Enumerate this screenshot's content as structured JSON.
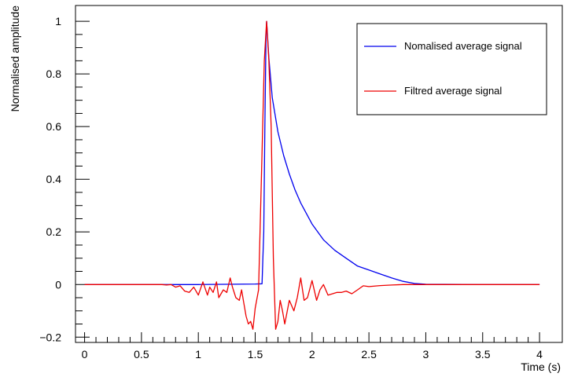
{
  "chart_data": {
    "type": "line",
    "title": "",
    "xlabel": "Time (s)",
    "ylabel": "Normalised amplitude",
    "xlim": [
      -0.08,
      4.2
    ],
    "ylim": [
      -0.22,
      1.06
    ],
    "x_ticks": [
      0,
      0.5,
      1,
      1.5,
      2,
      2.5,
      3,
      3.5,
      4
    ],
    "x_tick_labels": [
      "0",
      "0.5",
      "1",
      "1.5",
      "2",
      "2.5",
      "3",
      "3.5",
      "4"
    ],
    "y_ticks": [
      -0.2,
      0,
      0.2,
      0.4,
      0.6,
      0.8,
      1
    ],
    "y_tick_labels": [
      "−0.2",
      "0",
      "0.2",
      "0.4",
      "0.6",
      "0.8",
      "1"
    ],
    "grid": false,
    "legend_position": "top-right",
    "series": [
      {
        "name": "Nomalised average signal",
        "color": "#0000ee",
        "x": [
          0,
          0.5,
          1.0,
          1.5,
          1.56,
          1.575,
          1.585,
          1.595,
          1.6,
          1.605,
          1.62,
          1.65,
          1.7,
          1.75,
          1.8,
          1.85,
          1.9,
          1.95,
          2.0,
          2.1,
          2.2,
          2.3,
          2.4,
          2.5,
          2.6,
          2.7,
          2.8,
          2.9,
          3.0,
          3.5,
          4.0
        ],
        "y": [
          0,
          0,
          0,
          0.002,
          0.003,
          0.2,
          0.6,
          0.93,
          1.0,
          0.97,
          0.86,
          0.71,
          0.58,
          0.49,
          0.42,
          0.36,
          0.31,
          0.27,
          0.23,
          0.17,
          0.13,
          0.1,
          0.07,
          0.055,
          0.04,
          0.025,
          0.012,
          0.004,
          0.001,
          0,
          0
        ]
      },
      {
        "name": "Filtred average signal",
        "color": "#ee0000",
        "x": [
          0,
          0.68,
          0.72,
          0.76,
          0.8,
          0.84,
          0.88,
          0.92,
          0.96,
          1.0,
          1.04,
          1.08,
          1.1,
          1.13,
          1.16,
          1.18,
          1.22,
          1.25,
          1.28,
          1.3,
          1.33,
          1.36,
          1.38,
          1.4,
          1.42,
          1.44,
          1.46,
          1.48,
          1.5,
          1.53,
          1.56,
          1.58,
          1.6,
          1.62,
          1.64,
          1.66,
          1.68,
          1.7,
          1.72,
          1.74,
          1.76,
          1.8,
          1.84,
          1.87,
          1.9,
          1.93,
          1.96,
          2.0,
          2.04,
          2.07,
          2.1,
          2.14,
          2.18,
          2.22,
          2.26,
          2.3,
          2.35,
          2.4,
          2.45,
          2.5,
          2.6,
          2.7,
          2.8,
          2.9,
          3.0,
          3.5,
          4.0
        ],
        "y": [
          0,
          0,
          -0.002,
          0.0,
          -0.01,
          -0.005,
          -0.025,
          -0.03,
          -0.01,
          -0.04,
          0.01,
          -0.04,
          -0.01,
          -0.03,
          0.01,
          -0.05,
          -0.02,
          -0.03,
          0.025,
          -0.01,
          -0.05,
          -0.06,
          -0.02,
          -0.07,
          -0.12,
          -0.15,
          -0.14,
          -0.17,
          -0.09,
          -0.02,
          0.5,
          0.85,
          1.0,
          0.85,
          0.6,
          0.1,
          -0.17,
          -0.14,
          -0.06,
          -0.1,
          -0.15,
          -0.06,
          -0.1,
          -0.05,
          0.025,
          -0.06,
          -0.05,
          0.015,
          -0.06,
          -0.02,
          0.0,
          -0.04,
          -0.035,
          -0.03,
          -0.03,
          -0.025,
          -0.035,
          -0.02,
          -0.005,
          -0.008,
          -0.004,
          -0.002,
          0,
          0,
          0,
          0,
          0
        ]
      }
    ]
  }
}
